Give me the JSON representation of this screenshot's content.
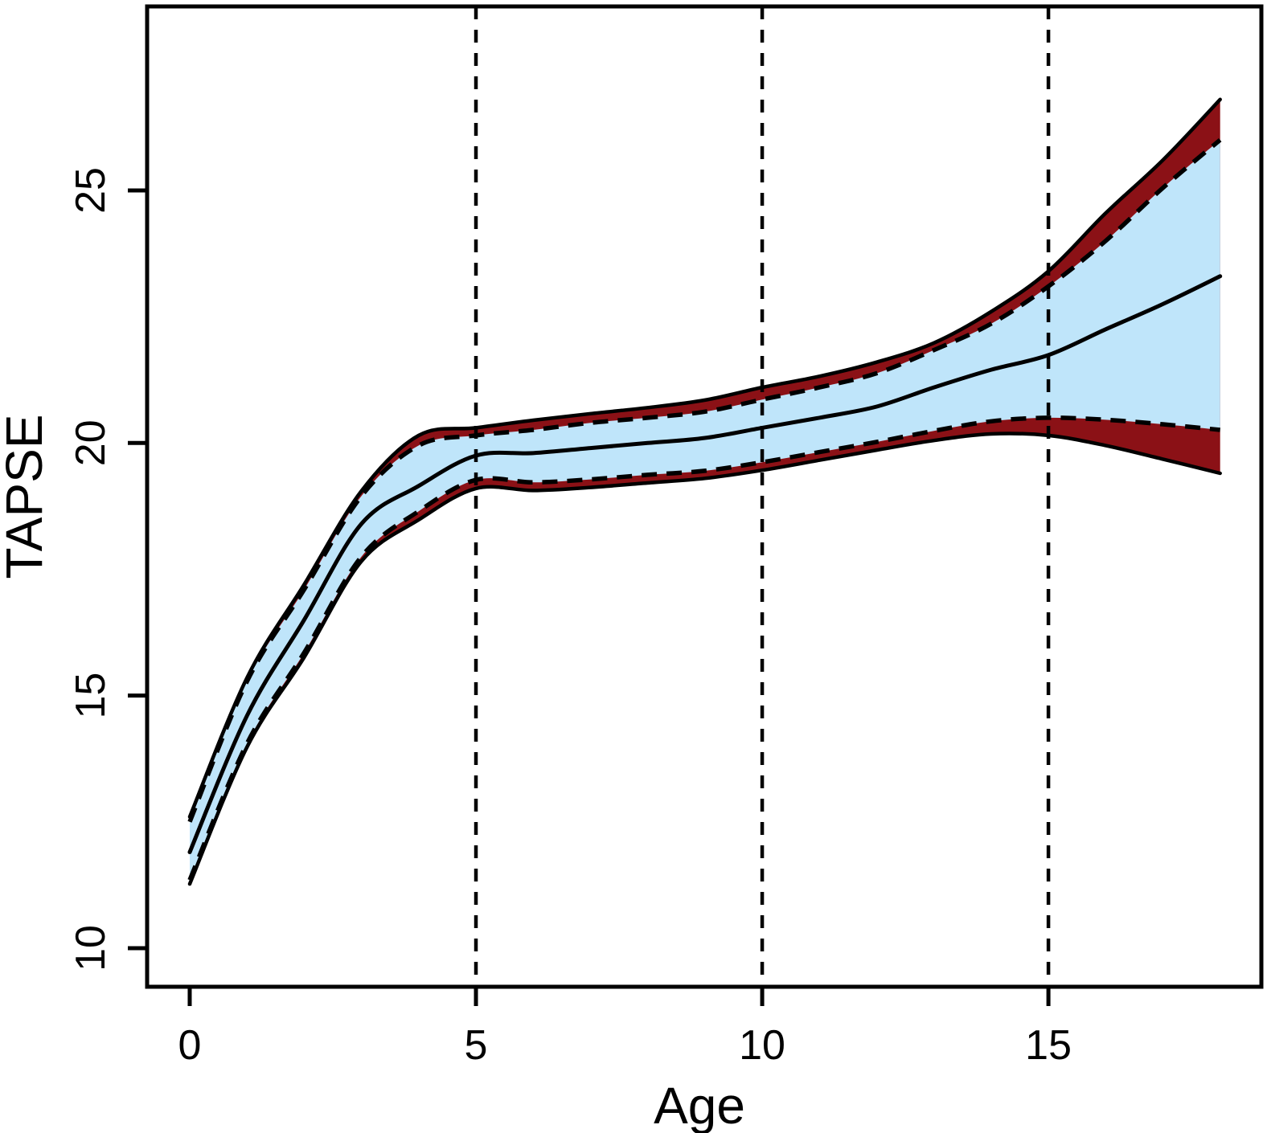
{
  "chart_data": {
    "type": "line",
    "title": "",
    "xlabel": "Age",
    "ylabel": "TAPSE",
    "x": [
      0,
      1,
      2,
      3,
      4,
      5,
      6,
      7,
      8,
      9,
      10,
      11,
      12,
      13,
      14,
      15,
      16,
      17,
      18
    ],
    "series": [
      {
        "name": "upper-outer-limit",
        "style": "solid",
        "color": "#000000",
        "values": [
          12.6,
          15.35,
          17.2,
          19.05,
          20.15,
          20.3,
          20.45,
          20.58,
          20.7,
          20.85,
          21.1,
          21.32,
          21.6,
          21.98,
          22.6,
          23.4,
          24.55,
          25.6,
          26.8
        ]
      },
      {
        "name": "upper-inner-limit",
        "style": "dashed",
        "color": "#000000",
        "values": [
          12.5,
          15.28,
          17.1,
          18.95,
          19.95,
          20.15,
          20.26,
          20.4,
          20.5,
          20.62,
          20.86,
          21.1,
          21.38,
          21.84,
          22.36,
          23.1,
          24.0,
          25.05,
          26.0
        ]
      },
      {
        "name": "median",
        "style": "solid",
        "color": "#000000",
        "values": [
          11.9,
          14.6,
          16.5,
          18.4,
          19.15,
          19.75,
          19.8,
          19.9,
          20.0,
          20.1,
          20.3,
          20.5,
          20.72,
          21.1,
          21.45,
          21.74,
          22.25,
          22.75,
          23.3
        ]
      },
      {
        "name": "lower-inner-limit",
        "style": "dashed",
        "color": "#000000",
        "values": [
          11.35,
          14.05,
          15.85,
          17.75,
          18.65,
          19.27,
          19.22,
          19.28,
          19.37,
          19.45,
          19.62,
          19.82,
          20.02,
          20.24,
          20.43,
          20.5,
          20.46,
          20.37,
          20.26
        ]
      },
      {
        "name": "lower-outer-limit",
        "style": "solid",
        "color": "#000000",
        "values": [
          11.27,
          13.98,
          15.76,
          17.66,
          18.48,
          19.1,
          19.06,
          19.12,
          19.21,
          19.3,
          19.46,
          19.66,
          19.86,
          20.05,
          20.18,
          20.15,
          19.95,
          19.68,
          19.4
        ]
      }
    ],
    "bands": [
      {
        "name": "outer-band",
        "upper": "upper-outer-limit",
        "lower": "lower-outer-limit",
        "fill": "#8B1116"
      },
      {
        "name": "inner-band",
        "upper": "upper-inner-limit",
        "lower": "lower-inner-limit",
        "fill": "#BFE5FA"
      }
    ],
    "x_ticks": [
      "0",
      "5",
      "10",
      "15"
    ],
    "x_tick_values": [
      0,
      5,
      10,
      15
    ],
    "y_ticks": [
      "10",
      "15",
      "20",
      "25"
    ],
    "y_tick_values": [
      10,
      15,
      20,
      25
    ],
    "vlines": {
      "x": [
        5,
        10,
        15
      ],
      "style": "dashed",
      "color": "#000000"
    },
    "xlim": [
      -0.744,
      18.72
    ],
    "ylim": [
      9.236,
      28.642
    ],
    "grid": false,
    "legend": null,
    "colors": {
      "inner_band": "#BFE5FA",
      "outer_band": "#8B1116",
      "line": "#000000",
      "background": "#FFFFFF"
    }
  }
}
